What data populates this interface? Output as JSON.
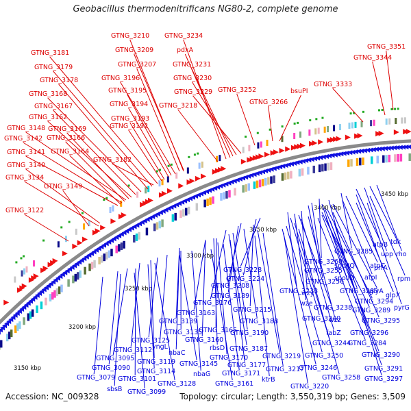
{
  "title": "Geobacillus thermodenitrificans NG80-2, complete genome",
  "footer": {
    "accession": "Accession: NC_009328",
    "summary": "Topology: circular; Length: 3,550,319 bp; Genes: 3,509"
  },
  "colors": {
    "forward_label": "#dd0000",
    "reverse_label": "#0000dd",
    "backbone": "#808080"
  },
  "ticks": [
    "3150 kbp",
    "3200 kbp",
    "3250 kbp",
    "3300 kbp",
    "3350 kbp",
    "3400 kbp",
    "3450 kbp"
  ],
  "forward_labels": [
    "GTNG_3210",
    "GTNG_3234",
    "GTNG_3209",
    "pdxA",
    "GTNG_3181",
    "GTNG_3207",
    "GTNG_3231",
    "GTNG_3179",
    "GTNG_3196",
    "GTNG_3230",
    "GTNG_3178",
    "GTNG_3195",
    "GTNG_3229",
    "GTNG_3252",
    "bsuPI",
    "GTNG_3168",
    "GTNG_3194",
    "GTNG_3218",
    "GTNG_3266",
    "GTNG_3167",
    "GTNG_3162",
    "GTNG_3193",
    "GTNG_3169",
    "GTNG_3192",
    "GTNG_3148",
    "GTNG_3166",
    "GTNG_3142",
    "GTNG_3164",
    "GTNG_3141",
    "GTNG_3182",
    "GTNG_3140",
    "GTNG_3134",
    "GTNG_3149",
    "GTNG_3122",
    "GTNG_3351",
    "GTNG_3344",
    "GTNG_3333"
  ],
  "reverse_labels": [
    "tdk",
    "atpB",
    "upp",
    "rho",
    "GTNG_3285",
    "prfA",
    "atpC",
    "GTNG_3260",
    "spoIIQ",
    "atpI",
    "rpmE",
    "GTNG_3228",
    "GTNG_3255",
    "spoIID",
    "GTNG_3224",
    "GTNG_3256",
    "glyA",
    "glpX",
    "GTNG_3208",
    "GTNG_3233",
    "wzy",
    "GTNG_3283",
    "GTNG_3176",
    "GTNG_3189",
    "wze",
    "GTNG_3294",
    "pyrG",
    "GTNG_3163",
    "GTNG_3215",
    "GTNG_3238",
    "GTNG_3289",
    "GTNG_3139",
    "GTNG_3188",
    "GTNG_3240",
    "wzz",
    "GTNG_3295",
    "GTNG_3135",
    "GTNG_3165",
    "GTNG_3190",
    "fabZ",
    "GTNG_3296",
    "GTNG_3125",
    "GTNG_3160",
    "GTNG_3244",
    "GTNG_3284",
    "yngL",
    "rbsD",
    "GTNG_3187",
    "GTNG_3112",
    "nbaC",
    "GTNG_3219",
    "GTNG_3250",
    "GTNG_3290",
    "GTNG_3119",
    "GTNG_3170",
    "GTNG_3095",
    "GTNG_3114",
    "GTNG_3145",
    "GTNG_3177",
    "GTNG_3217",
    "GTNG_3246",
    "GTNG_3291",
    "GTNG_3090",
    "nbaG",
    "GTNG_3171",
    "GTNG_3101",
    "ktrB",
    "GTNG_3258",
    "GTNG_3297",
    "GTNG_3079",
    "GTNG_3128",
    "GTNG_3161",
    "GTNG_3220",
    "sbsB",
    "GTNG_3099"
  ]
}
